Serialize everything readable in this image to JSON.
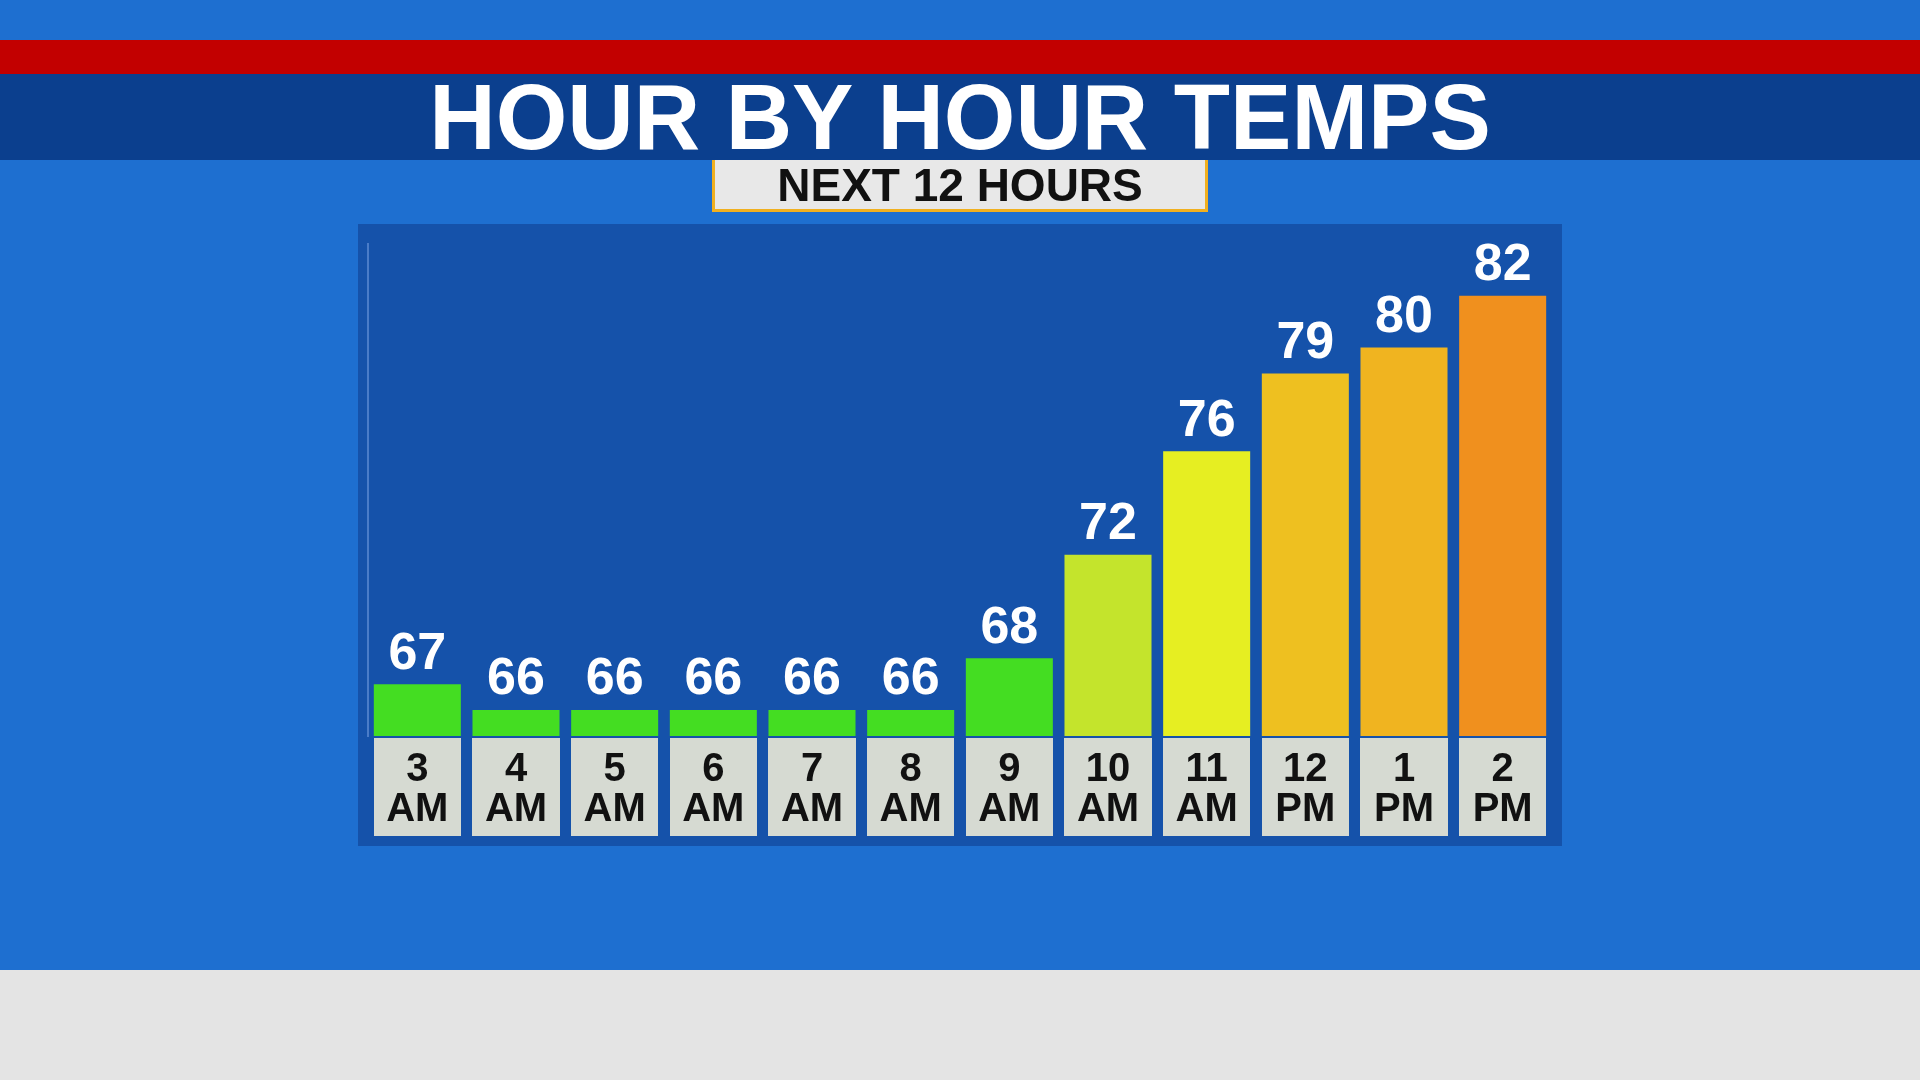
{
  "chart_data": {
    "type": "bar",
    "title": "HOUR BY HOUR TEMPS",
    "subtitle": "NEXT 12 HOURS",
    "categories": [
      "3 AM",
      "4 AM",
      "5 AM",
      "6 AM",
      "7 AM",
      "8 AM",
      "9 AM",
      "10 AM",
      "11 AM",
      "12 PM",
      "1 PM",
      "2 PM"
    ],
    "values": [
      67,
      66,
      66,
      66,
      66,
      66,
      68,
      72,
      76,
      79,
      80,
      82
    ],
    "colors": [
      "#44dd22",
      "#44dd22",
      "#44dd22",
      "#44dd22",
      "#44dd22",
      "#44dd22",
      "#44dd22",
      "#c4e42c",
      "#e6ee22",
      "#eec020",
      "#f0b420",
      "#f0901e"
    ],
    "ylim": [
      65,
      84
    ],
    "data_labels": true,
    "grid": false,
    "legend": false
  }
}
